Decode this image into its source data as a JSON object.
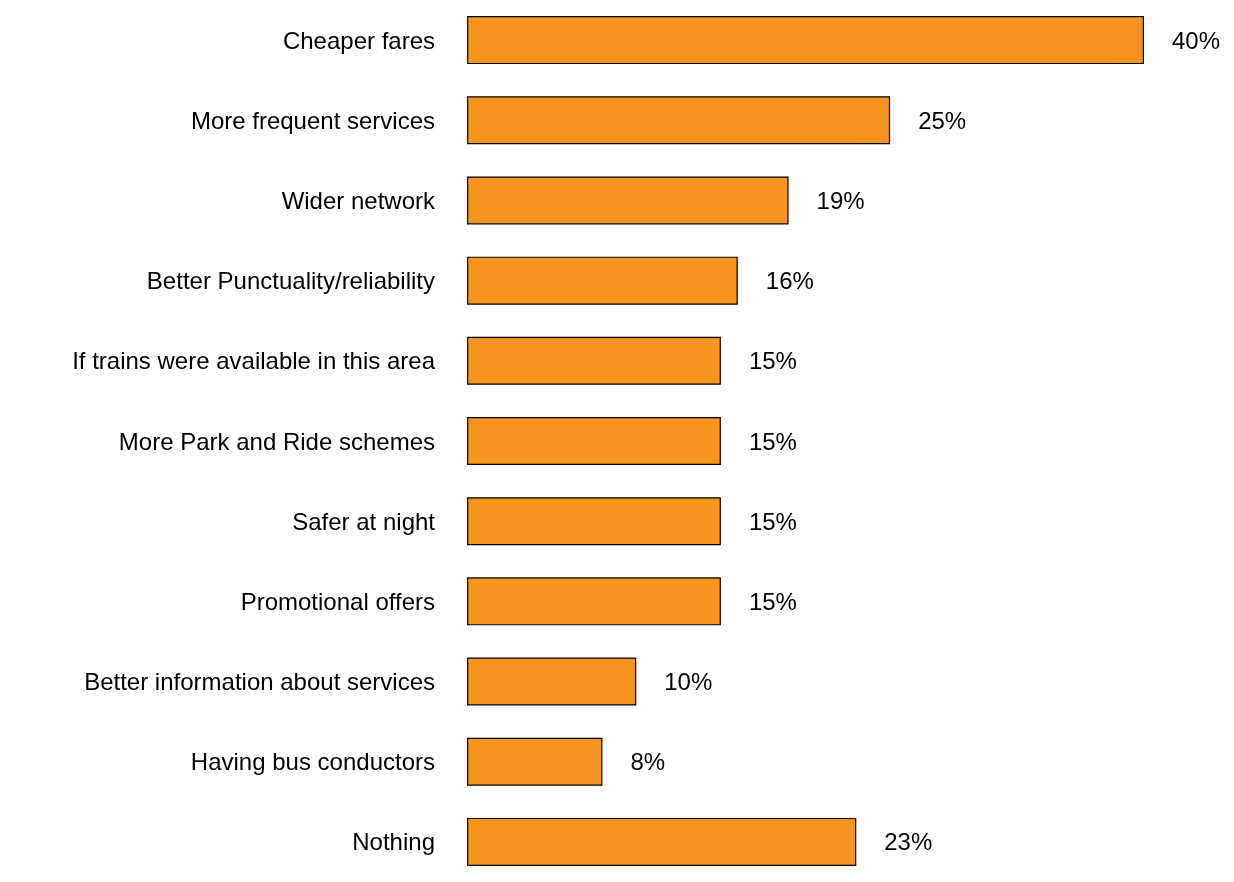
{
  "chart_data": {
    "type": "bar",
    "orientation": "horizontal",
    "categories": [
      "Cheaper fares",
      "More frequent services",
      "Wider network",
      "Better Punctuality/reliability",
      "If trains were available in this area",
      "More Park and Ride schemes",
      "Safer at night",
      "Promotional offers",
      "Better information about services",
      "Having bus conductors",
      "Nothing"
    ],
    "values": [
      40,
      25,
      19,
      16,
      15,
      15,
      15,
      15,
      10,
      8,
      23
    ],
    "value_labels": [
      "40%",
      "25%",
      "19%",
      "16%",
      "15%",
      "15%",
      "15%",
      "15%",
      "10%",
      "8%",
      "23%"
    ],
    "color": "#f7941d"
  }
}
